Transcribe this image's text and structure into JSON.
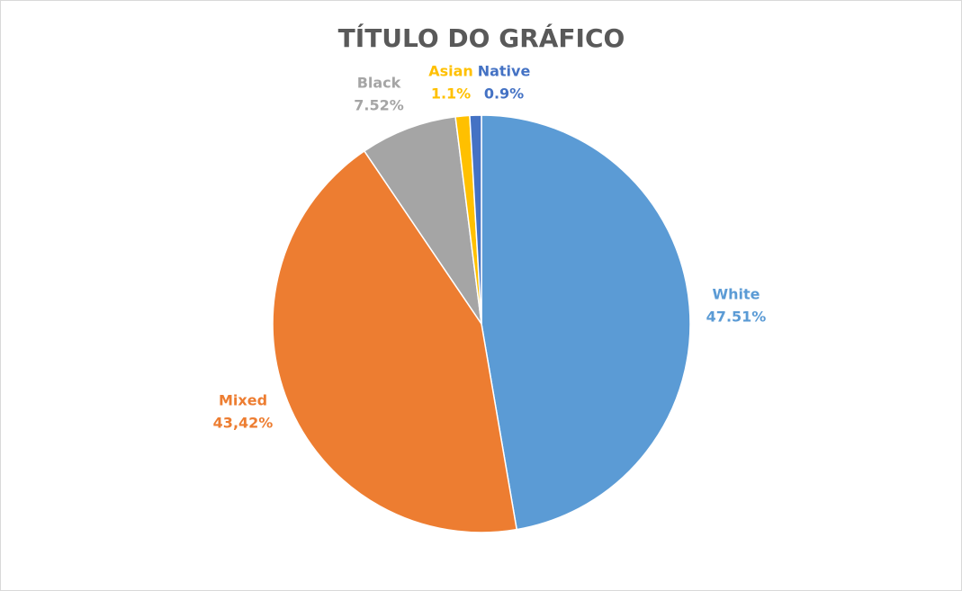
{
  "chart_data": {
    "type": "pie",
    "title": "TÍTULO DO GRÁFICO",
    "categories": [
      "White",
      "Mixed",
      "Black",
      "Asian",
      "Native"
    ],
    "values": [
      47.51,
      43.42,
      7.52,
      1.1,
      0.9
    ],
    "value_labels": [
      "47.51%",
      "43,42%",
      "7.52%",
      "1.1%",
      "0.9%"
    ],
    "colors": [
      "#5b9bd5",
      "#ed7d31",
      "#a5a5a5",
      "#ffc000",
      "#4472c4"
    ]
  }
}
